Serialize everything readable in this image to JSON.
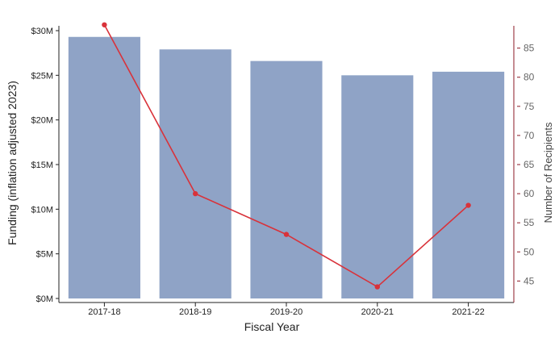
{
  "chart_data": {
    "type": "bar",
    "title": "",
    "xlabel": "Fiscal Year",
    "ylabel": "Funding (inflation adjusted 2023)",
    "y2label": "Number of Recipients",
    "categories": [
      "2017-18",
      "2018-19",
      "2019-20",
      "2020-21",
      "2021-22"
    ],
    "series": [
      {
        "type": "bar",
        "axis": "left",
        "values": [
          29.3,
          27.9,
          26.6,
          25.0,
          25.4
        ],
        "color": "#8fa3c6"
      },
      {
        "type": "line",
        "axis": "right",
        "values": [
          89,
          60,
          53,
          44,
          58
        ],
        "color": "#d9323a"
      }
    ],
    "ylim": [
      0,
      30
    ],
    "yticks": [
      0,
      5,
      10,
      15,
      20,
      25,
      30
    ],
    "ytick_labels": [
      "$0M",
      "$5M",
      "$10M",
      "$15M",
      "$20M",
      "$25M",
      "$30M"
    ],
    "y2lim": [
      42,
      88
    ],
    "y2ticks": [
      45,
      50,
      55,
      60,
      65,
      70,
      75,
      80,
      85
    ],
    "y2tick_labels": [
      "45",
      "50",
      "55",
      "60",
      "65",
      "70",
      "75",
      "80",
      "85"
    ],
    "right_axis_color": "#8b1a24",
    "grid": false,
    "legend": "none"
  }
}
